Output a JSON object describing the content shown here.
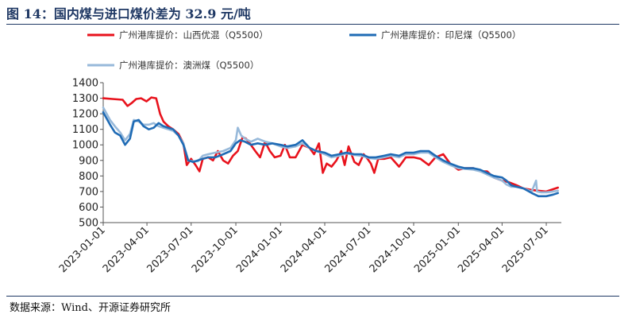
{
  "title": "图 14：国内煤与进口煤价差为 32.9 元/吨",
  "source": "数据来源：Wind、开源证券研究所",
  "chart_data": {
    "type": "line",
    "ylim": [
      500,
      1400
    ],
    "yticks": [
      "500",
      "600",
      "700",
      "800",
      "900",
      "1000",
      "1100",
      "1200",
      "1300",
      "1400"
    ],
    "xlim": [
      "2023-01-01",
      "2025-08-01"
    ],
    "xticks": [
      "2023-01-01",
      "2023-04-01",
      "2023-07-01",
      "2023-10-01",
      "2024-01-01",
      "2024-04-01",
      "2024-07-01",
      "2024-10-01",
      "2025-01-01",
      "2025-04-01",
      "2025-07-01"
    ],
    "legend_position": "top",
    "series": [
      {
        "name": "广州港库提价：山西优混（Q5500）",
        "color": "#e8121c",
        "points": [
          [
            "2023-01-01",
            1300
          ],
          [
            "2023-01-20",
            1295
          ],
          [
            "2023-02-10",
            1290
          ],
          [
            "2023-02-20",
            1250
          ],
          [
            "2023-03-01",
            1270
          ],
          [
            "2023-03-10",
            1295
          ],
          [
            "2023-03-20",
            1300
          ],
          [
            "2023-03-31",
            1280
          ],
          [
            "2023-04-10",
            1305
          ],
          [
            "2023-04-20",
            1300
          ],
          [
            "2023-04-28",
            1200
          ],
          [
            "2023-05-05",
            1150
          ],
          [
            "2023-05-15",
            1120
          ],
          [
            "2023-05-25",
            1100
          ],
          [
            "2023-06-05",
            1070
          ],
          [
            "2023-06-15",
            1010
          ],
          [
            "2023-06-22",
            870
          ],
          [
            "2023-07-01",
            910
          ],
          [
            "2023-07-10",
            870
          ],
          [
            "2023-07-18",
            830
          ],
          [
            "2023-07-25",
            910
          ],
          [
            "2023-08-05",
            920
          ],
          [
            "2023-08-15",
            900
          ],
          [
            "2023-08-25",
            960
          ],
          [
            "2023-09-05",
            900
          ],
          [
            "2023-09-15",
            880
          ],
          [
            "2023-09-25",
            930
          ],
          [
            "2023-10-05",
            960
          ],
          [
            "2023-10-15",
            1050
          ],
          [
            "2023-10-22",
            1040
          ],
          [
            "2023-11-01",
            1000
          ],
          [
            "2023-11-10",
            960
          ],
          [
            "2023-11-20",
            920
          ],
          [
            "2023-11-30",
            1020
          ],
          [
            "2023-12-10",
            960
          ],
          [
            "2023-12-20",
            920
          ],
          [
            "2024-01-01",
            930
          ],
          [
            "2024-01-10",
            1000
          ],
          [
            "2024-01-20",
            920
          ],
          [
            "2024-02-01",
            920
          ],
          [
            "2024-02-15",
            1000
          ],
          [
            "2024-03-01",
            980
          ],
          [
            "2024-03-10",
            940
          ],
          [
            "2024-03-20",
            1010
          ],
          [
            "2024-03-28",
            820
          ],
          [
            "2024-04-05",
            880
          ],
          [
            "2024-04-15",
            860
          ],
          [
            "2024-04-25",
            900
          ],
          [
            "2024-05-05",
            960
          ],
          [
            "2024-05-12",
            870
          ],
          [
            "2024-05-20",
            990
          ],
          [
            "2024-06-01",
            890
          ],
          [
            "2024-06-10",
            870
          ],
          [
            "2024-06-20",
            940
          ],
          [
            "2024-06-28",
            910
          ],
          [
            "2024-07-05",
            880
          ],
          [
            "2024-07-12",
            820
          ],
          [
            "2024-07-20",
            910
          ],
          [
            "2024-08-01",
            910
          ],
          [
            "2024-08-15",
            920
          ],
          [
            "2024-09-01",
            860
          ],
          [
            "2024-09-15",
            920
          ],
          [
            "2024-10-01",
            920
          ],
          [
            "2024-10-15",
            910
          ],
          [
            "2024-11-01",
            870
          ],
          [
            "2024-11-15",
            920
          ],
          [
            "2024-12-01",
            940
          ],
          [
            "2024-12-15",
            880
          ],
          [
            "2025-01-01",
            840
          ],
          [
            "2025-01-15",
            850
          ],
          [
            "2025-02-01",
            850
          ],
          [
            "2025-02-15",
            830
          ],
          [
            "2025-03-01",
            830
          ],
          [
            "2025-03-15",
            790
          ],
          [
            "2025-04-01",
            770
          ],
          [
            "2025-04-15",
            760
          ],
          [
            "2025-05-01",
            740
          ],
          [
            "2025-05-15",
            720
          ],
          [
            "2025-06-01",
            710
          ],
          [
            "2025-06-15",
            705
          ],
          [
            "2025-07-01",
            700
          ],
          [
            "2025-07-15",
            715
          ],
          [
            "2025-07-25",
            725
          ]
        ]
      },
      {
        "name": "广州港库提价：印尼煤（Q5500）",
        "color": "#1f6bb5",
        "points": [
          [
            "2023-01-01",
            1210
          ],
          [
            "2023-01-15",
            1130
          ],
          [
            "2023-01-25",
            1080
          ],
          [
            "2023-02-05",
            1060
          ],
          [
            "2023-02-15",
            1000
          ],
          [
            "2023-02-25",
            1040
          ],
          [
            "2023-03-05",
            1150
          ],
          [
            "2023-03-15",
            1160
          ],
          [
            "2023-03-25",
            1120
          ],
          [
            "2023-04-05",
            1100
          ],
          [
            "2023-04-15",
            1110
          ],
          [
            "2023-04-25",
            1140
          ],
          [
            "2023-05-05",
            1120
          ],
          [
            "2023-05-15",
            1110
          ],
          [
            "2023-05-25",
            1100
          ],
          [
            "2023-06-05",
            1060
          ],
          [
            "2023-06-15",
            1000
          ],
          [
            "2023-06-25",
            900
          ],
          [
            "2023-07-05",
            890
          ],
          [
            "2023-07-15",
            900
          ],
          [
            "2023-07-25",
            910
          ],
          [
            "2023-08-05",
            920
          ],
          [
            "2023-08-20",
            920
          ],
          [
            "2023-09-05",
            940
          ],
          [
            "2023-09-20",
            960
          ],
          [
            "2023-10-01",
            1010
          ],
          [
            "2023-10-10",
            1030
          ],
          [
            "2023-10-20",
            1020
          ],
          [
            "2023-11-01",
            1000
          ],
          [
            "2023-11-15",
            1010
          ],
          [
            "2023-12-01",
            1000
          ],
          [
            "2023-12-15",
            1010
          ],
          [
            "2024-01-01",
            1000
          ],
          [
            "2024-01-15",
            990
          ],
          [
            "2024-02-01",
            1000
          ],
          [
            "2024-02-15",
            1030
          ],
          [
            "2024-03-01",
            980
          ],
          [
            "2024-03-15",
            960
          ],
          [
            "2024-04-01",
            950
          ],
          [
            "2024-04-15",
            930
          ],
          [
            "2024-05-01",
            940
          ],
          [
            "2024-05-15",
            950
          ],
          [
            "2024-06-01",
            940
          ],
          [
            "2024-06-15",
            940
          ],
          [
            "2024-07-01",
            920
          ],
          [
            "2024-07-15",
            920
          ],
          [
            "2024-08-01",
            930
          ],
          [
            "2024-08-15",
            940
          ],
          [
            "2024-09-01",
            930
          ],
          [
            "2024-09-15",
            950
          ],
          [
            "2024-10-01",
            950
          ],
          [
            "2024-10-15",
            960
          ],
          [
            "2024-11-01",
            960
          ],
          [
            "2024-11-15",
            930
          ],
          [
            "2024-12-01",
            900
          ],
          [
            "2024-12-15",
            880
          ],
          [
            "2025-01-01",
            860
          ],
          [
            "2025-01-15",
            850
          ],
          [
            "2025-02-01",
            850
          ],
          [
            "2025-02-15",
            840
          ],
          [
            "2025-03-01",
            820
          ],
          [
            "2025-03-15",
            800
          ],
          [
            "2025-04-01",
            790
          ],
          [
            "2025-04-10",
            770
          ],
          [
            "2025-04-20",
            740
          ],
          [
            "2025-05-01",
            730
          ],
          [
            "2025-05-15",
            720
          ],
          [
            "2025-06-01",
            690
          ],
          [
            "2025-06-15",
            670
          ],
          [
            "2025-07-01",
            670
          ],
          [
            "2025-07-15",
            680
          ],
          [
            "2025-07-25",
            690
          ]
        ]
      },
      {
        "name": "广州港库提价：澳洲煤（Q5500）",
        "color": "#97b9da",
        "points": [
          [
            "2023-01-01",
            1240
          ],
          [
            "2023-01-15",
            1160
          ],
          [
            "2023-01-25",
            1120
          ],
          [
            "2023-02-05",
            1080
          ],
          [
            "2023-02-15",
            1030
          ],
          [
            "2023-02-25",
            1070
          ],
          [
            "2023-03-05",
            1160
          ],
          [
            "2023-03-15",
            1150
          ],
          [
            "2023-03-25",
            1130
          ],
          [
            "2023-04-05",
            1130
          ],
          [
            "2023-04-15",
            1140
          ],
          [
            "2023-04-25",
            1120
          ],
          [
            "2023-05-05",
            1110
          ],
          [
            "2023-05-15",
            1100
          ],
          [
            "2023-05-25",
            1090
          ],
          [
            "2023-06-05",
            1060
          ],
          [
            "2023-06-15",
            1010
          ],
          [
            "2023-06-25",
            900
          ],
          [
            "2023-07-05",
            895
          ],
          [
            "2023-07-15",
            895
          ],
          [
            "2023-07-25",
            930
          ],
          [
            "2023-08-05",
            940
          ],
          [
            "2023-08-20",
            950
          ],
          [
            "2023-09-05",
            960
          ],
          [
            "2023-09-20",
            980
          ],
          [
            "2023-10-01",
            1030
          ],
          [
            "2023-10-05",
            1110
          ],
          [
            "2023-10-12",
            1060
          ],
          [
            "2023-10-20",
            1040
          ],
          [
            "2023-11-01",
            1020
          ],
          [
            "2023-11-15",
            1040
          ],
          [
            "2023-12-01",
            1020
          ],
          [
            "2023-12-15",
            1010
          ],
          [
            "2024-01-01",
            990
          ],
          [
            "2024-01-15",
            980
          ],
          [
            "2024-02-01",
            990
          ],
          [
            "2024-02-15",
            1010
          ],
          [
            "2024-03-01",
            980
          ],
          [
            "2024-03-15",
            960
          ],
          [
            "2024-04-01",
            940
          ],
          [
            "2024-04-15",
            920
          ],
          [
            "2024-05-01",
            930
          ],
          [
            "2024-05-15",
            945
          ],
          [
            "2024-06-01",
            935
          ],
          [
            "2024-06-15",
            930
          ],
          [
            "2024-07-01",
            915
          ],
          [
            "2024-07-15",
            910
          ],
          [
            "2024-08-01",
            920
          ],
          [
            "2024-08-15",
            930
          ],
          [
            "2024-09-01",
            920
          ],
          [
            "2024-09-15",
            940
          ],
          [
            "2024-10-01",
            940
          ],
          [
            "2024-10-15",
            950
          ],
          [
            "2024-11-01",
            950
          ],
          [
            "2024-11-15",
            920
          ],
          [
            "2024-12-01",
            890
          ],
          [
            "2024-12-15",
            870
          ],
          [
            "2025-01-01",
            850
          ],
          [
            "2025-01-15",
            845
          ],
          [
            "2025-02-01",
            840
          ],
          [
            "2025-02-15",
            830
          ],
          [
            "2025-03-01",
            810
          ],
          [
            "2025-03-15",
            790
          ],
          [
            "2025-04-01",
            770
          ],
          [
            "2025-04-10",
            745
          ],
          [
            "2025-04-20",
            730
          ],
          [
            "2025-05-01",
            730
          ],
          [
            "2025-05-15",
            720
          ],
          [
            "2025-06-01",
            700
          ],
          [
            "2025-06-10",
            770
          ],
          [
            "2025-06-12",
            700
          ],
          [
            "2025-06-20",
            695
          ],
          [
            "2025-07-01",
            695
          ],
          [
            "2025-07-15",
            700
          ],
          [
            "2025-07-25",
            705
          ]
        ]
      }
    ]
  }
}
